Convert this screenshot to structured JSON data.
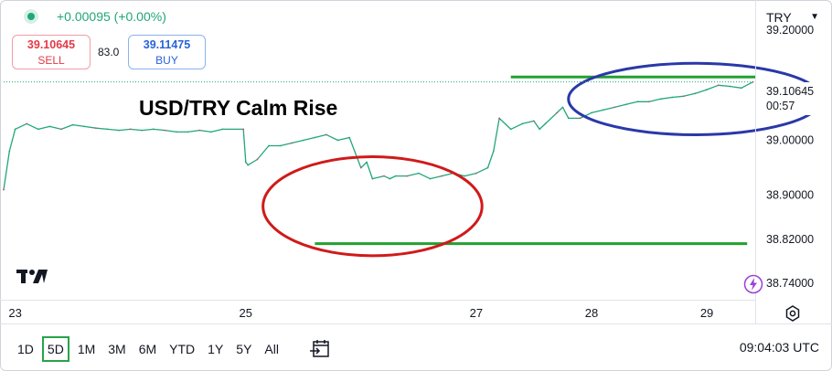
{
  "header": {
    "change_text": "+0.00095 (+0.00%)",
    "sell_price": "39.10645",
    "sell_label": "SELL",
    "spread": "83.0",
    "buy_price": "39.11475",
    "buy_label": "BUY",
    "currency": "TRY"
  },
  "current_price": {
    "value": "39.10645",
    "countdown": "00:57"
  },
  "chart_data": {
    "type": "line",
    "title": "USD/TRY Calm Rise",
    "y_ticks": [
      "39.20000",
      "39.00000",
      "38.90000",
      "38.82000",
      "38.74000"
    ],
    "y_tick_values": [
      39.2,
      39.0,
      38.9,
      38.82,
      38.74
    ],
    "x_ticks": [
      "23",
      "25",
      "27",
      "28",
      "29"
    ],
    "x_tick_values": [
      23,
      25,
      27,
      28,
      29
    ],
    "xlim": [
      22.9,
      29.42
    ],
    "ylim": [
      38.71,
      39.255
    ],
    "series": [
      {
        "color": "#22a67a",
        "x": [
          22.9,
          22.95,
          23.0,
          23.1,
          23.2,
          23.3,
          23.4,
          23.5,
          23.6,
          23.7,
          23.8,
          23.9,
          24.0,
          24.1,
          24.2,
          24.3,
          24.4,
          24.5,
          24.6,
          24.7,
          24.8,
          24.98,
          25.0,
          25.02,
          25.1,
          25.2,
          25.3,
          25.4,
          25.5,
          25.6,
          25.7,
          25.8,
          25.9,
          26.0,
          26.05,
          26.1,
          26.2,
          26.25,
          26.3,
          26.4,
          26.5,
          26.6,
          26.7,
          26.8,
          26.9,
          27.0,
          27.1,
          27.15,
          27.2,
          27.3,
          27.4,
          27.5,
          27.55,
          27.6,
          27.7,
          27.75,
          27.8,
          27.9,
          28.0,
          28.1,
          28.2,
          28.3,
          28.4,
          28.5,
          28.6,
          28.7,
          28.8,
          28.9,
          29.0,
          29.1,
          29.2,
          29.3,
          29.4
        ],
        "y": [
          38.91,
          38.98,
          39.02,
          39.03,
          39.02,
          39.025,
          39.02,
          39.028,
          39.025,
          39.022,
          39.02,
          39.018,
          39.02,
          39.018,
          39.02,
          39.018,
          39.015,
          39.015,
          39.018,
          39.015,
          39.02,
          39.02,
          38.96,
          38.955,
          38.965,
          38.99,
          38.99,
          38.995,
          39.0,
          39.005,
          39.01,
          39.0,
          39.005,
          38.95,
          38.96,
          38.93,
          38.935,
          38.93,
          38.935,
          38.935,
          38.94,
          38.93,
          38.935,
          38.94,
          38.935,
          38.94,
          38.95,
          38.98,
          39.04,
          39.02,
          39.03,
          39.035,
          39.02,
          39.03,
          39.05,
          39.06,
          39.04,
          39.04,
          39.05,
          39.055,
          39.06,
          39.065,
          39.07,
          39.07,
          39.075,
          39.078,
          39.08,
          39.085,
          39.092,
          39.1,
          39.098,
          39.095,
          39.106
        ]
      }
    ],
    "lines": [
      {
        "color": "#22a030",
        "y": 39.115,
        "x_from": 27.3,
        "x_to": 29.42
      },
      {
        "color": "#22a030",
        "y": 38.812,
        "x_from": 25.6,
        "x_to": 29.35
      }
    ],
    "ellipses": [
      {
        "color": "#d01a1a",
        "cx": 26.1,
        "cy": 38.88,
        "rx": 0.95,
        "ry": 0.09
      },
      {
        "color": "#2a38a8",
        "cx": 28.9,
        "cy": 39.075,
        "rx": 1.1,
        "ry": 0.065
      }
    ]
  },
  "toolbar": {
    "timeframes": [
      "1D",
      "5D",
      "1M",
      "3M",
      "6M",
      "YTD",
      "1Y",
      "5Y",
      "All"
    ],
    "active": "5D",
    "clock": "09:04:03 UTC"
  },
  "icons": {
    "logo": "tradingview-logo-icon",
    "compare": "compare-calendar-icon",
    "settings": "settings-gear-icon",
    "flash": "lightning-icon"
  }
}
